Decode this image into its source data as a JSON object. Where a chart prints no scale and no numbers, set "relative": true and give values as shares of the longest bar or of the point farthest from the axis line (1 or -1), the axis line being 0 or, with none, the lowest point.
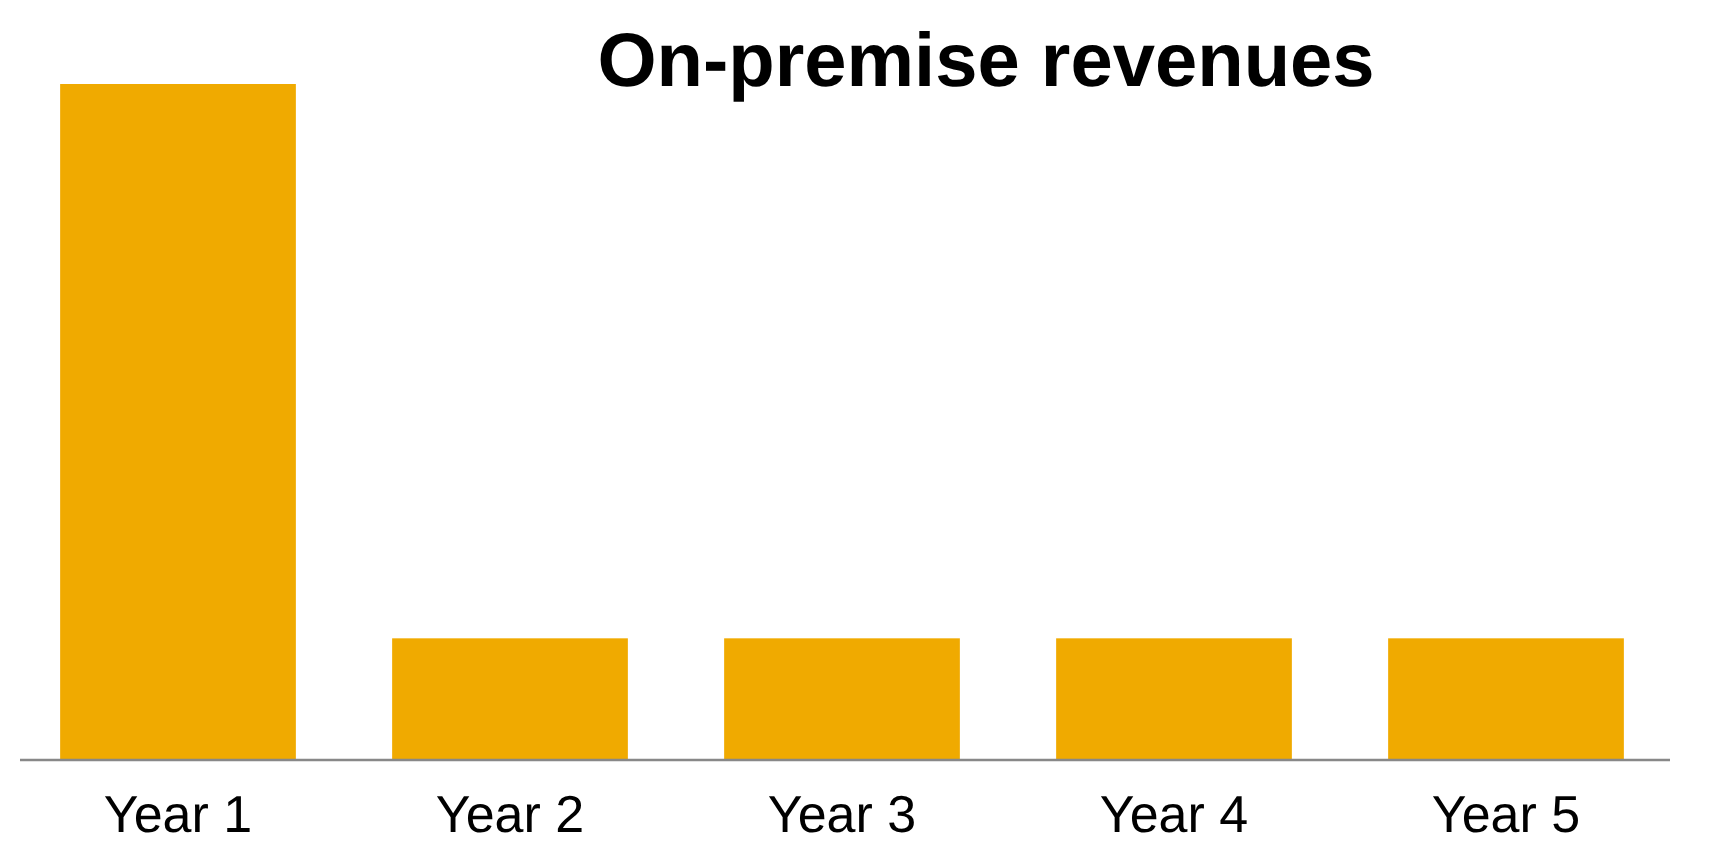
{
  "chart_data": {
    "type": "bar",
    "title": "On-premise revenues",
    "relative": true,
    "categories": [
      "Year 1",
      "Year 2",
      "Year 3",
      "Year 4",
      "Year 5"
    ],
    "values": [
      1,
      0.18,
      0.18,
      0.18,
      0.18
    ],
    "color": "#f0aa00"
  }
}
